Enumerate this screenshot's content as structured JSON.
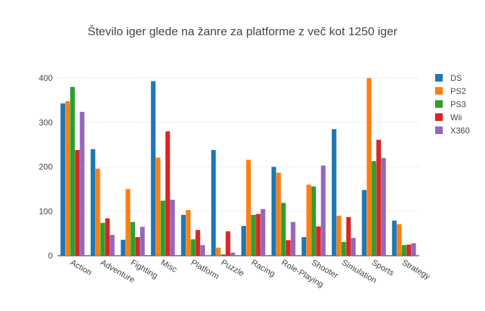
{
  "chart_data": {
    "type": "bar",
    "title": "Število iger glede na žanre za platforme z več kot 1250 iger",
    "categories": [
      "Action",
      "Adventure",
      "Fighting",
      "Misc",
      "Platform",
      "Puzzle",
      "Racing",
      "Role-Playing",
      "Shooter",
      "Simulation",
      "Sports",
      "Strategy"
    ],
    "series": [
      {
        "name": "DS",
        "color": "#1f77b4",
        "values": [
          343,
          240,
          36,
          393,
          92,
          238,
          67,
          200,
          42,
          285,
          148,
          79
        ]
      },
      {
        "name": "PS2",
        "color": "#ff7f0e",
        "values": [
          348,
          196,
          150,
          221,
          103,
          18,
          216,
          187,
          160,
          90,
          400,
          71
        ]
      },
      {
        "name": "PS3",
        "color": "#2ca02c",
        "values": [
          380,
          74,
          76,
          124,
          37,
          3,
          92,
          119,
          156,
          31,
          213,
          24
        ]
      },
      {
        "name": "Wii",
        "color": "#d62728",
        "values": [
          238,
          84,
          42,
          280,
          58,
          55,
          94,
          35,
          66,
          87,
          261,
          25
        ]
      },
      {
        "name": "X360",
        "color": "#9467bd",
        "values": [
          324,
          47,
          65,
          126,
          24,
          7,
          105,
          76,
          203,
          40,
          220,
          28
        ]
      }
    ],
    "yticks": [
      0,
      100,
      200,
      300,
      400
    ],
    "ylim": [
      0,
      400
    ],
    "grid": true,
    "legend": "right"
  }
}
